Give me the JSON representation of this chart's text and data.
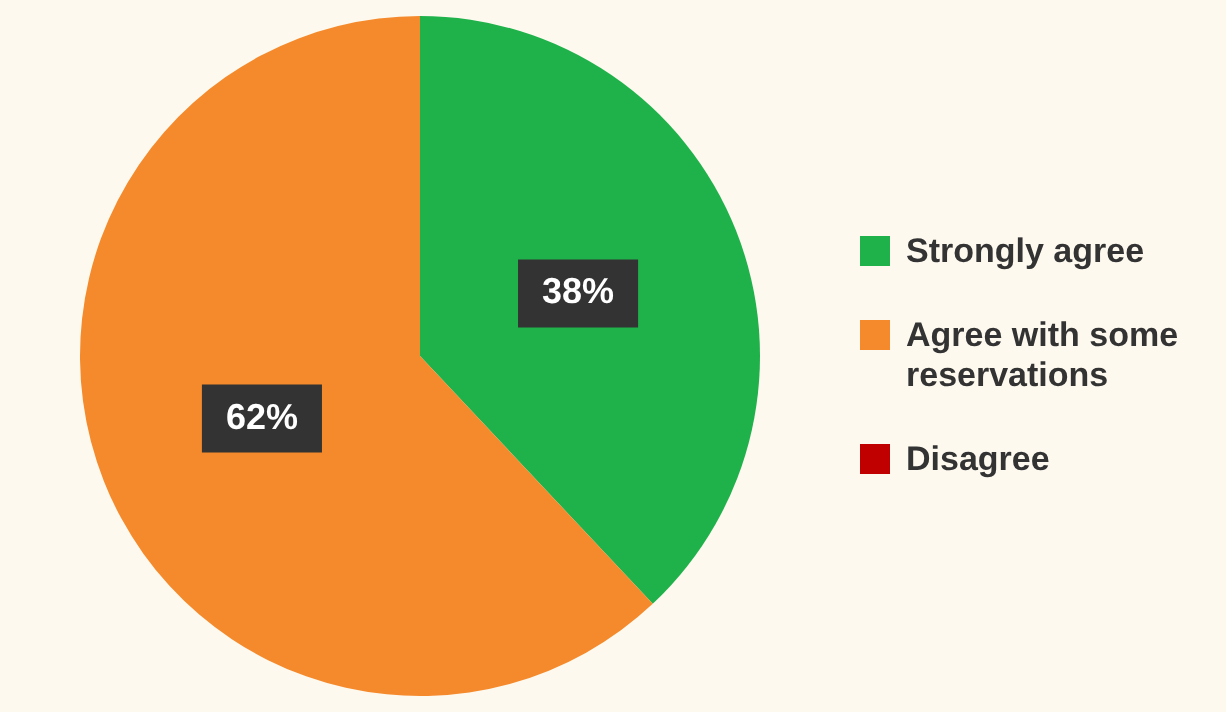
{
  "chart_data": {
    "type": "pie",
    "categories": [
      "Strongly agree",
      "Agree with some reservations",
      "Disagree"
    ],
    "values": [
      38,
      62,
      0
    ],
    "colors": [
      "#1fb24a",
      "#f58a2c",
      "#c00000"
    ],
    "value_labels": [
      "38%",
      "62%",
      null
    ],
    "legend": "right"
  }
}
